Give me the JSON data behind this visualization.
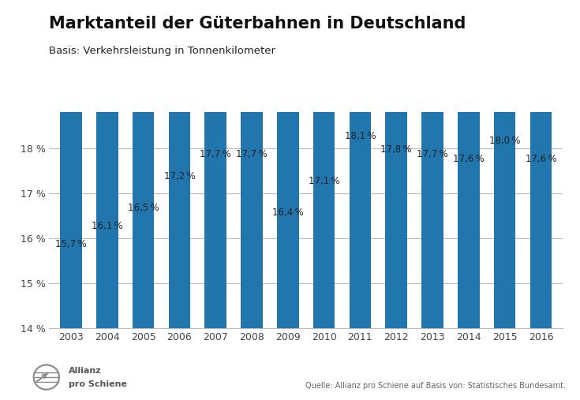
{
  "title": "Marktanteil der Güterbahnen in Deutschland",
  "subtitle": "Basis: Verkehrsleistung in Tonnenkilometer",
  "source": "Quelle: Allianz pro Schiene auf Basis von: Statistisches Bundesamt.",
  "years": [
    2003,
    2004,
    2005,
    2006,
    2007,
    2008,
    2009,
    2010,
    2011,
    2012,
    2013,
    2014,
    2015,
    2016
  ],
  "values": [
    15.7,
    16.1,
    16.5,
    17.2,
    17.7,
    17.7,
    16.4,
    17.1,
    18.1,
    17.8,
    17.7,
    17.6,
    18.0,
    17.6
  ],
  "bar_color": "#2176AE",
  "background_color": "#ffffff",
  "ylim": [
    14.0,
    18.8
  ],
  "yticks": [
    14.0,
    15.0,
    16.0,
    17.0,
    18.0
  ],
  "ytick_labels": [
    "14 %",
    "15 %",
    "16 %",
    "17 %",
    "18 %"
  ],
  "title_fontsize": 15,
  "subtitle_fontsize": 9.5,
  "label_fontsize": 8.5,
  "tick_fontsize": 9,
  "source_fontsize": 7,
  "grid_color": "#bbbbbb",
  "spine_color": "#bbbbbb",
  "text_color": "#222222",
  "tick_color": "#444444"
}
